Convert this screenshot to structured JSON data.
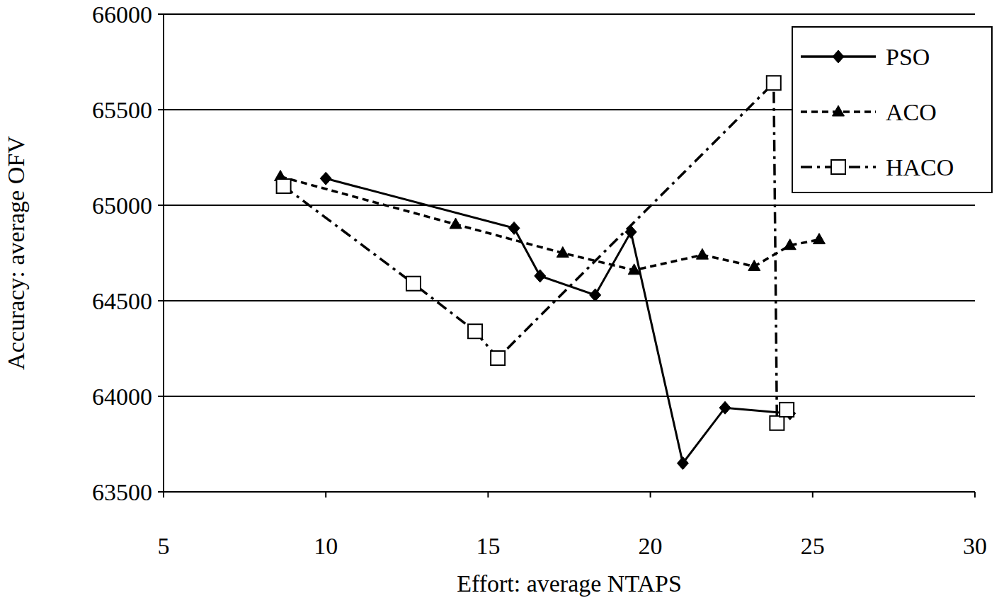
{
  "chart_data": {
    "type": "line",
    "x_label": "Effort: average NTAPS",
    "y_label": "Accuracy: average OFV",
    "xlim": [
      5,
      30
    ],
    "xticks": [
      5,
      10,
      15,
      20,
      25,
      30
    ],
    "ylim": [
      63500,
      66000
    ],
    "yticks": [
      63500,
      64000,
      64500,
      65000,
      65500,
      66000
    ],
    "grid": true,
    "legend": "top-right",
    "series": [
      {
        "name": "PSO",
        "color": "#000000",
        "marker": "diamond",
        "line_style": "solid",
        "x": [
          10,
          15.8,
          16.6,
          18.3,
          19.4,
          21.0,
          22.3,
          24.3
        ],
        "values": [
          65140,
          64880,
          64630,
          64530,
          64860,
          63650,
          63940,
          63910
        ]
      },
      {
        "name": "ACO",
        "color": "#000000",
        "marker": "triangle",
        "line_style": "dashed",
        "x": [
          8.6,
          14.0,
          17.3,
          19.5,
          21.6,
          23.2,
          24.3,
          25.2
        ],
        "values": [
          65150,
          64900,
          64750,
          64660,
          64740,
          64680,
          64790,
          64820
        ]
      },
      {
        "name": "HACO",
        "color": "#000000",
        "marker": "square",
        "line_style": "dashdot",
        "x": [
          8.7,
          12.7,
          14.6,
          15.3,
          23.8,
          23.9,
          24.2
        ],
        "values": [
          65100,
          64590,
          64340,
          64200,
          65640,
          63860,
          63930
        ]
      }
    ]
  }
}
